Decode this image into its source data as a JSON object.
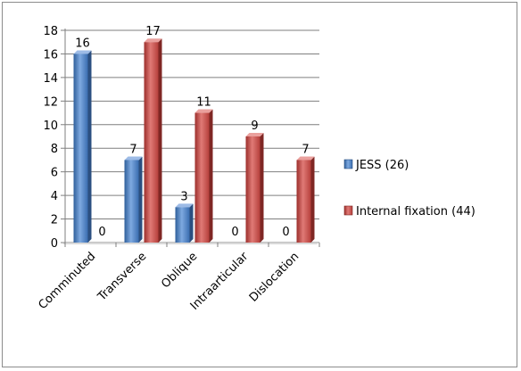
{
  "chart_data": {
    "type": "bar",
    "categories": [
      "Comminuted",
      "Transverse",
      "Oblique",
      "Intraarticular",
      "Dislocation"
    ],
    "series": [
      {
        "name": "JESS (26)",
        "values": [
          16,
          7,
          3,
          0,
          0
        ],
        "color": "#4a7ebb"
      },
      {
        "name": "Internal fixation (44)",
        "values": [
          0,
          17,
          11,
          9,
          7
        ],
        "color": "#c0504d"
      }
    ],
    "ylim": [
      0,
      18
    ],
    "yticks": [
      0,
      2,
      4,
      6,
      8,
      10,
      12,
      14,
      16,
      18
    ],
    "grid": true,
    "legend": "right"
  }
}
